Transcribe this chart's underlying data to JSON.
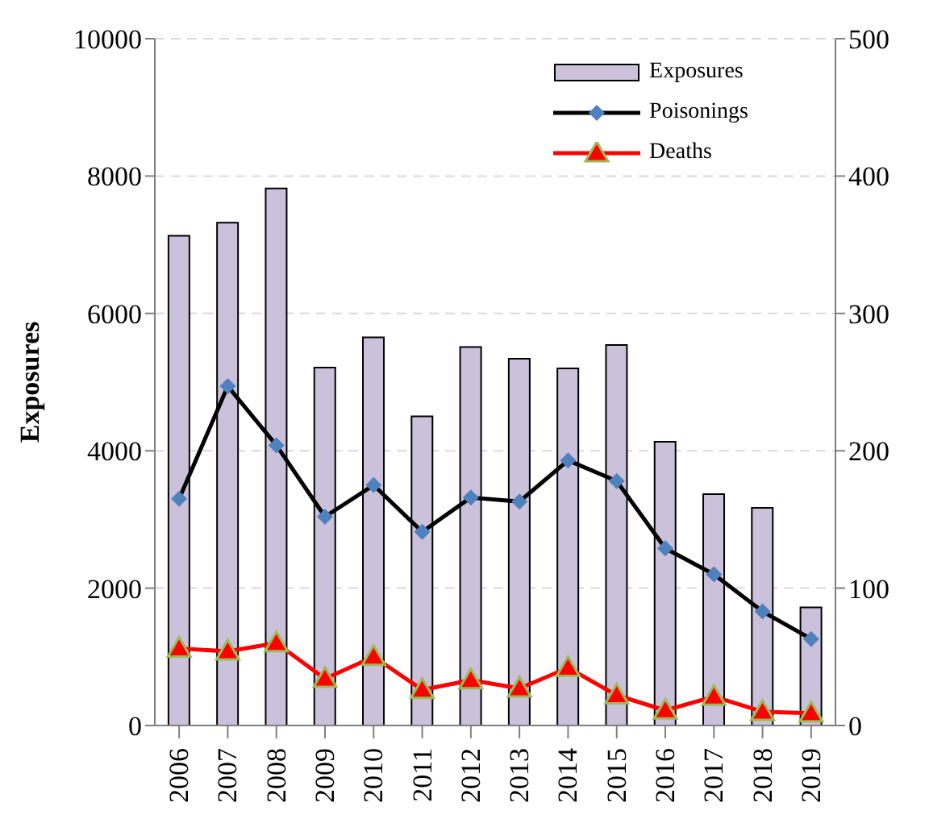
{
  "chart_data": {
    "type": "bar",
    "ylabel": "Exposures",
    "categories": [
      "2006",
      "2007",
      "2008",
      "2009",
      "2010",
      "2011",
      "2012",
      "2013",
      "2014",
      "2015",
      "2016",
      "2017",
      "2018",
      "2019"
    ],
    "series": [
      {
        "name": "Exposures",
        "color": "#ccc1da",
        "values": [
          7130,
          7320,
          7820,
          5210,
          5650,
          4500,
          5510,
          5340,
          5200,
          5540,
          4130,
          3370,
          3170,
          1720
        ]
      },
      {
        "name": "Poisonings",
        "type": "line",
        "axis": "y2",
        "color": "#000000",
        "marker": "diamond",
        "values": [
          165,
          247,
          204,
          152,
          175,
          141,
          166,
          163,
          193,
          178,
          129,
          110,
          83,
          63
        ]
      },
      {
        "name": "Deaths",
        "type": "line",
        "axis": "y2",
        "color": "#ff0000",
        "marker": "triangle",
        "values": [
          56,
          54,
          60,
          34,
          50,
          26,
          33,
          27,
          42,
          22,
          11,
          21,
          10,
          9
        ]
      }
    ],
    "ylim": [
      0,
      10000
    ],
    "yticks": [
      0,
      2000,
      4000,
      6000,
      8000,
      10000
    ],
    "y2lim": [
      0,
      500
    ],
    "y2ticks": [
      0,
      100,
      200,
      300,
      400,
      500
    ],
    "grid": "y",
    "legend": "top right"
  }
}
